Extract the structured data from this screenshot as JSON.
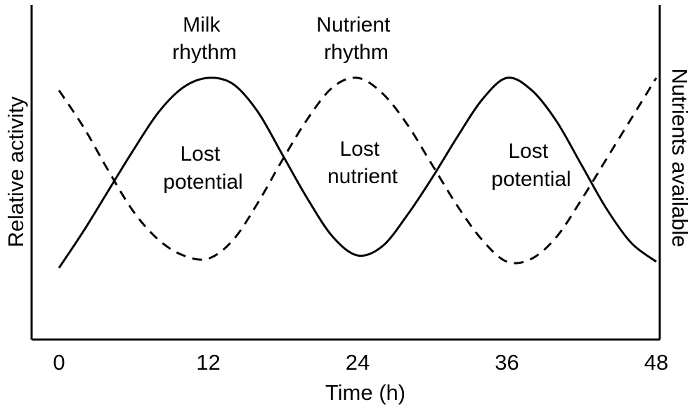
{
  "chart_data": {
    "type": "line",
    "xlabel": "Time (h)",
    "ylabel": "Relative activity",
    "ylabel_right": "Nutrients available",
    "x_ticks": [
      0,
      12,
      24,
      36,
      48
    ],
    "xlim": [
      0,
      48
    ],
    "ylim": [
      0,
      1
    ],
    "grid": false,
    "series": [
      {
        "name": "Milk rhythm",
        "style": "solid",
        "x": [
          0,
          2,
          4,
          6,
          8,
          10,
          12,
          14,
          16,
          18,
          20,
          22,
          24,
          26,
          28,
          30,
          32,
          34,
          36,
          38,
          40,
          42,
          44,
          46,
          48
        ],
        "y": [
          0.23,
          0.35,
          0.48,
          0.61,
          0.73,
          0.81,
          0.84,
          0.82,
          0.73,
          0.59,
          0.45,
          0.33,
          0.27,
          0.3,
          0.4,
          0.52,
          0.65,
          0.77,
          0.84,
          0.8,
          0.7,
          0.56,
          0.42,
          0.31,
          0.25
        ]
      },
      {
        "name": "Nutrient rhythm",
        "style": "dashed",
        "x": [
          0,
          2,
          4,
          6,
          8,
          10,
          12,
          14,
          16,
          18,
          20,
          22,
          24,
          26,
          28,
          30,
          32,
          34,
          36,
          38,
          40,
          42,
          44,
          46,
          48
        ],
        "y": [
          0.8,
          0.68,
          0.54,
          0.41,
          0.32,
          0.27,
          0.26,
          0.32,
          0.44,
          0.58,
          0.71,
          0.81,
          0.84,
          0.79,
          0.69,
          0.56,
          0.43,
          0.32,
          0.25,
          0.26,
          0.33,
          0.45,
          0.58,
          0.71,
          0.84
        ]
      }
    ],
    "annotations": [
      {
        "id": "milk",
        "lines": [
          "Milk",
          "rhythm"
        ]
      },
      {
        "id": "nutrient",
        "lines": [
          "Nutrient",
          "rhythm"
        ]
      },
      {
        "id": "lost1",
        "lines": [
          "Lost",
          "potential"
        ]
      },
      {
        "id": "lost2",
        "lines": [
          "Lost",
          "nutrient"
        ]
      },
      {
        "id": "lost3",
        "lines": [
          "Lost",
          "potential"
        ]
      }
    ]
  }
}
